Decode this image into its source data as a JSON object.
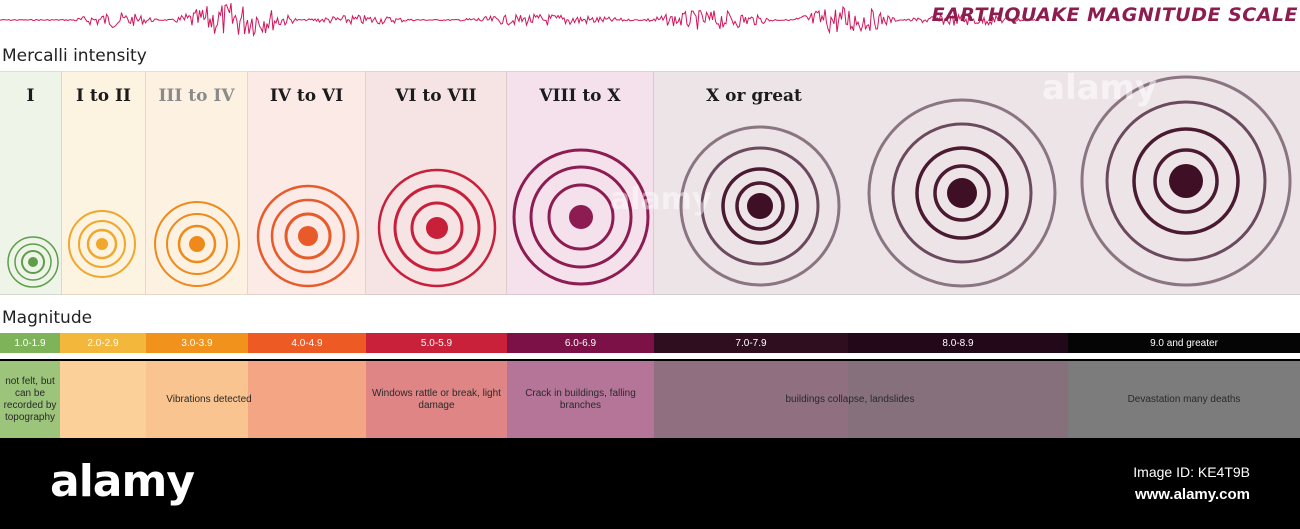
{
  "header": {
    "title": "EARTHQUAKE MAGNITUDE SCALE"
  },
  "sections": {
    "mercalli_label": "Mercalli intensity",
    "magnitude_label": "Magnitude"
  },
  "colors": {
    "seismograph": "#d2155a",
    "ring_green": "#5e9e4a",
    "ring_yellow": "#f1a72c",
    "ring_orange": "#ef8a1a",
    "ring_redorange": "#e85a2a",
    "ring_red": "#c81f3a",
    "ring_magenta": "#8c1c52",
    "ring_dark": "#4a1a30"
  },
  "intensity_panels": [
    {
      "label": "I",
      "bg": "#eef4e8"
    },
    {
      "label": "I to II",
      "bg": "#fdf3e1"
    },
    {
      "label": "III to IV",
      "bg": "#fdf1e1"
    },
    {
      "label": "IV to VI",
      "bg": "#fbeae5"
    },
    {
      "label": "VI to VII",
      "bg": "#f6e3e3"
    },
    {
      "label": "VIII to X",
      "bg": "#f4e1ec"
    },
    {
      "label": "X or great",
      "bg": "#ede4e8"
    }
  ],
  "magnitude_scale": [
    {
      "label": "1.0-1.9",
      "color": "#7fb35a"
    },
    {
      "label": "2.0-2.9",
      "color": "#f3b73c"
    },
    {
      "label": "3.0-3.9",
      "color": "#f0921c"
    },
    {
      "label": "4.0-4.9",
      "color": "#ee5a24"
    },
    {
      "label": "5.0-5.9",
      "color": "#c9213a"
    },
    {
      "label": "6.0-6.9",
      "color": "#7c1147"
    },
    {
      "label": "7.0-7.9",
      "color": "#2f0f1f"
    },
    {
      "label": "8.0-8.9",
      "color": "#23081a"
    },
    {
      "label": "9.0 and greater",
      "color": "#050505"
    }
  ],
  "effects": [
    {
      "text": "not felt, but can be recorded by topography",
      "color": "#9cc47b"
    },
    {
      "text": "",
      "color": "#fbd199"
    },
    {
      "text": "Vibrations detected",
      "color": "#f9c48f"
    },
    {
      "text": "",
      "color": "#f4a583"
    },
    {
      "text": "Windows rattle or break, light damage",
      "color": "#df8585"
    },
    {
      "text": "Crack in buildings, falling branches",
      "color": "#b57598"
    },
    {
      "text": "buildings collapse, landslides",
      "color": "#8f6f80"
    },
    {
      "text": "",
      "color": "#86707c"
    },
    {
      "text": "Devastation many deaths",
      "color": "#7c7c7c"
    }
  ],
  "footer": {
    "logo": "alamy",
    "image_id": "Image ID: KE4T9B",
    "url": "www.alamy.com"
  },
  "watermark": "alamy"
}
